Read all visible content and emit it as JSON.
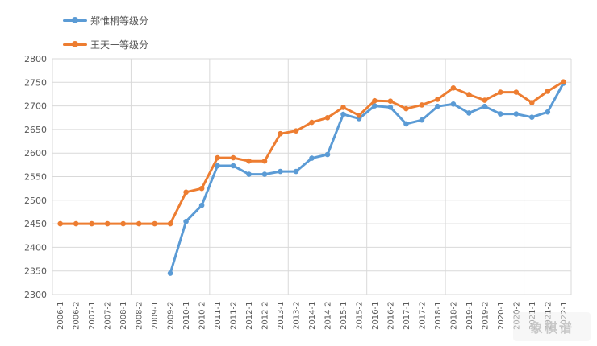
{
  "colors": {
    "series1": "#5b9bd5",
    "series2": "#ed7d31",
    "grid": "#d9d9d9",
    "text": "#595959"
  },
  "watermark": "象棋谱",
  "chart_data": {
    "type": "line",
    "categories": [
      "2006-1",
      "2006-2",
      "2007-1",
      "2007-2",
      "2008-1",
      "2008-2",
      "2009-1",
      "2009-2",
      "2010-1",
      "2010-2",
      "2011-1",
      "2011-2",
      "2012-1",
      "2012-2",
      "2013-1",
      "2013-2",
      "2014-1",
      "2014-2",
      "2015-1",
      "2015-2",
      "2016-1",
      "2016-2",
      "2017-1",
      "2017-2",
      "2018-1",
      "2018-2",
      "2019-1",
      "2019-2",
      "2020-1",
      "2020-2",
      "2021-1",
      "2021-2",
      "2022-1"
    ],
    "series": [
      {
        "name": "郑惟桐等级分",
        "values": [
          null,
          null,
          null,
          null,
          null,
          null,
          null,
          2345,
          2455,
          2489,
          2573,
          2573,
          2555,
          2555,
          2561,
          2561,
          2589,
          2597,
          2682,
          2673,
          2700,
          2697,
          2662,
          2670,
          2699,
          2704,
          2685,
          2699,
          2683,
          2683,
          2676,
          2687,
          2748
        ]
      },
      {
        "name": "王天一等级分",
        "values": [
          2450,
          2450,
          2450,
          2450,
          2450,
          2450,
          2450,
          2450,
          2517,
          2525,
          2590,
          2590,
          2583,
          2583,
          2641,
          2647,
          2665,
          2675,
          2697,
          2680,
          2711,
          2710,
          2694,
          2702,
          2714,
          2738,
          2724,
          2712,
          2729,
          2729,
          2707,
          2731,
          2751
        ]
      }
    ],
    "ylim": [
      2300,
      2800
    ],
    "yticks": [
      2300,
      2350,
      2400,
      2450,
      2500,
      2550,
      2600,
      2650,
      2700,
      2750,
      2800
    ],
    "grid": true,
    "legend_position": "top-left",
    "title": "",
    "xlabel": "",
    "ylabel": ""
  }
}
